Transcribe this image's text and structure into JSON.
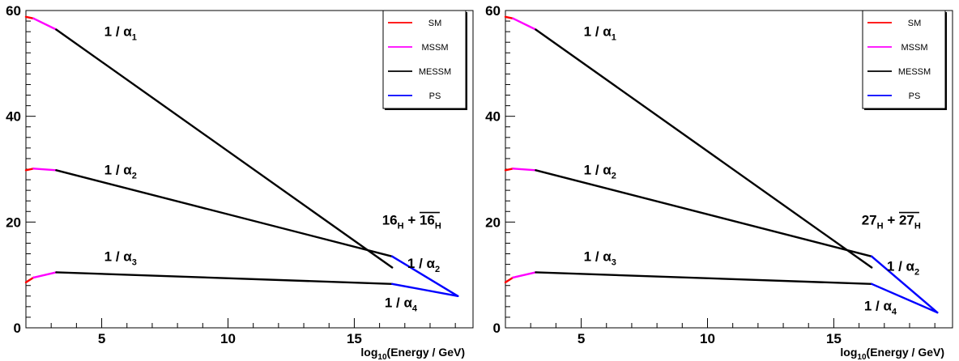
{
  "chart_data": [
    {
      "type": "line",
      "xlabel": {
        "pre": "log",
        "sub": "10",
        "post": "(Energy / GeV)"
      },
      "xlim": [
        2,
        19.7
      ],
      "ylim": [
        0,
        60
      ],
      "xticks": [
        5,
        10,
        15
      ],
      "yticks": [
        0,
        20,
        40,
        60
      ],
      "legend": {
        "position": "top-right",
        "entries": [
          {
            "name": "SM",
            "color": "#ff0000"
          },
          {
            "name": "MSSM",
            "color": "#ff00ff"
          },
          {
            "name": "MESSM",
            "color": "#000000"
          },
          {
            "name": "PS",
            "color": "#0000ff"
          }
        ]
      },
      "series": [
        {
          "name": "1/α1 SM",
          "color": "#ff0000",
          "x": [
            2.0,
            2.3
          ],
          "y": [
            58.8,
            58.5
          ]
        },
        {
          "name": "1/α1 MSSM",
          "color": "#ff00ff",
          "x": [
            2.3,
            3.2
          ],
          "y": [
            58.5,
            56.4
          ]
        },
        {
          "name": "1/α1 MESSM",
          "color": "#000000",
          "x": [
            3.2,
            16.5
          ],
          "y": [
            56.4,
            11.4
          ]
        },
        {
          "name": "1/α2 SM",
          "color": "#ff0000",
          "x": [
            2.0,
            2.3
          ],
          "y": [
            29.8,
            30.1
          ]
        },
        {
          "name": "1/α2 MSSM",
          "color": "#ff00ff",
          "x": [
            2.3,
            3.2
          ],
          "y": [
            30.1,
            29.8
          ]
        },
        {
          "name": "1/α2 MESSM",
          "color": "#000000",
          "x": [
            3.2,
            16.5
          ],
          "y": [
            29.8,
            13.5
          ]
        },
        {
          "name": "1/α2 PS",
          "color": "#0000ff",
          "x": [
            16.5,
            19.1
          ],
          "y": [
            13.5,
            6.0
          ]
        },
        {
          "name": "1/α3 SM",
          "color": "#ff0000",
          "x": [
            2.0,
            2.3
          ],
          "y": [
            8.6,
            9.5
          ]
        },
        {
          "name": "1/α3 MSSM",
          "color": "#ff00ff",
          "x": [
            2.3,
            3.2
          ],
          "y": [
            9.5,
            10.5
          ]
        },
        {
          "name": "1/α3 MESSM",
          "color": "#000000",
          "x": [
            3.2,
            16.5
          ],
          "y": [
            10.5,
            8.3
          ]
        },
        {
          "name": "1/α4 PS",
          "color": "#0000ff",
          "x": [
            16.5,
            19.1
          ],
          "y": [
            8.3,
            6.0
          ]
        }
      ],
      "labels": [
        {
          "text": "1 / α",
          "sub": "1",
          "x": 5.1,
          "y": 55.2
        },
        {
          "text": "1 / α",
          "sub": "2",
          "x": 5.1,
          "y": 29.0
        },
        {
          "text": "1 / α",
          "sub": "3",
          "x": 5.1,
          "y": 12.6
        },
        {
          "text": "1 / α",
          "sub": "2",
          "x": 17.1,
          "y": 11.3
        },
        {
          "text": "1 / α",
          "sub": "4",
          "x": 16.2,
          "y": 3.9
        }
      ],
      "representation": {
        "base": "16",
        "sub": "H",
        "sep": " + ",
        "base_bar": "16",
        "sub_bar": "H",
        "x": 16.1,
        "y": 19.5
      }
    },
    {
      "type": "line",
      "xlabel": {
        "pre": "log",
        "sub": "10",
        "post": "(Energy / GeV)"
      },
      "xlim": [
        2,
        19.7
      ],
      "ylim": [
        0,
        60
      ],
      "xticks": [
        5,
        10,
        15
      ],
      "yticks": [
        0,
        20,
        40,
        60
      ],
      "legend": {
        "position": "top-right",
        "entries": [
          {
            "name": "SM",
            "color": "#ff0000"
          },
          {
            "name": "MSSM",
            "color": "#ff00ff"
          },
          {
            "name": "MESSM",
            "color": "#000000"
          },
          {
            "name": "PS",
            "color": "#0000ff"
          }
        ]
      },
      "series": [
        {
          "name": "1/α1 SM",
          "color": "#ff0000",
          "x": [
            2.0,
            2.3
          ],
          "y": [
            58.8,
            58.5
          ]
        },
        {
          "name": "1/α1 MSSM",
          "color": "#ff00ff",
          "x": [
            2.3,
            3.2
          ],
          "y": [
            58.5,
            56.4
          ]
        },
        {
          "name": "1/α1 MESSM",
          "color": "#000000",
          "x": [
            3.2,
            16.5
          ],
          "y": [
            56.4,
            11.4
          ]
        },
        {
          "name": "1/α2 SM",
          "color": "#ff0000",
          "x": [
            2.0,
            2.3
          ],
          "y": [
            29.8,
            30.1
          ]
        },
        {
          "name": "1/α2 MSSM",
          "color": "#ff00ff",
          "x": [
            2.3,
            3.2
          ],
          "y": [
            30.1,
            29.8
          ]
        },
        {
          "name": "1/α2 MESSM",
          "color": "#000000",
          "x": [
            3.2,
            16.5
          ],
          "y": [
            29.8,
            13.5
          ]
        },
        {
          "name": "1/α2 PS",
          "color": "#0000ff",
          "x": [
            16.5,
            19.1
          ],
          "y": [
            13.5,
            2.9
          ]
        },
        {
          "name": "1/α3 SM",
          "color": "#ff0000",
          "x": [
            2.0,
            2.3
          ],
          "y": [
            8.6,
            9.5
          ]
        },
        {
          "name": "1/α3 MSSM",
          "color": "#ff00ff",
          "x": [
            2.3,
            3.2
          ],
          "y": [
            9.5,
            10.5
          ]
        },
        {
          "name": "1/α3 MESSM",
          "color": "#000000",
          "x": [
            3.2,
            16.5
          ],
          "y": [
            10.5,
            8.3
          ]
        },
        {
          "name": "1/α4 PS",
          "color": "#0000ff",
          "x": [
            16.5,
            19.1
          ],
          "y": [
            8.3,
            2.9
          ]
        }
      ],
      "labels": [
        {
          "text": "1 / α",
          "sub": "1",
          "x": 5.1,
          "y": 55.2
        },
        {
          "text": "1 / α",
          "sub": "2",
          "x": 5.1,
          "y": 29.0
        },
        {
          "text": "1 / α",
          "sub": "3",
          "x": 5.1,
          "y": 12.6
        },
        {
          "text": "1 / α",
          "sub": "2",
          "x": 17.1,
          "y": 10.8
        },
        {
          "text": "1 / α",
          "sub": "4",
          "x": 16.2,
          "y": 3.3
        }
      ],
      "representation": {
        "base": "27",
        "sub": "H",
        "sep": " + ",
        "base_bar": "27",
        "sub_bar": "H",
        "x": 16.1,
        "y": 19.5
      }
    }
  ]
}
